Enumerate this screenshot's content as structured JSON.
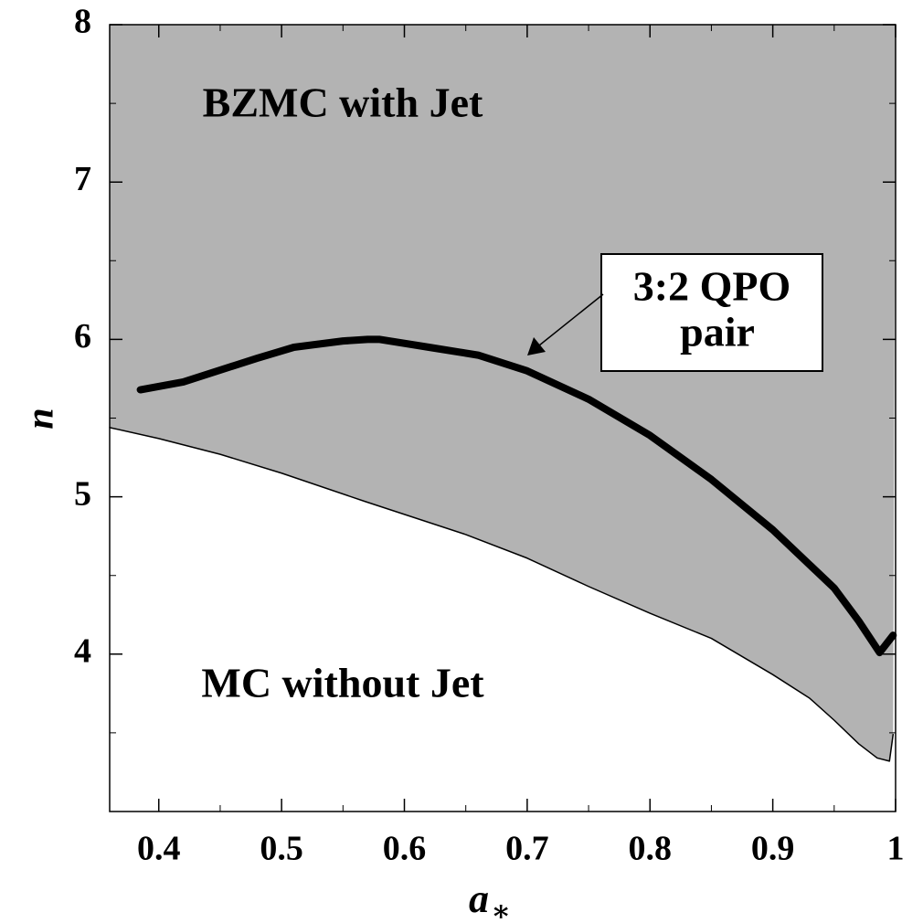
{
  "chart_data": {
    "type": "line",
    "x_label": "a",
    "x_label_subscript": "∗",
    "y_label": "n",
    "xlim": [
      0.36,
      1
    ],
    "ylim": [
      3,
      8
    ],
    "xticks": [
      {
        "value": 0.4,
        "label": "0.4"
      },
      {
        "value": 0.5,
        "label": "0.5"
      },
      {
        "value": 0.6,
        "label": "0.6"
      },
      {
        "value": 0.7,
        "label": "0.7"
      },
      {
        "value": 0.8,
        "label": "0.8"
      },
      {
        "value": 0.9,
        "label": "0.9"
      },
      1
    ],
    "yticks": [
      4,
      5,
      6,
      7,
      8
    ],
    "xminorticks": [
      0.45,
      0.55,
      0.65,
      0.75,
      0.85,
      0.95
    ],
    "yminorticks": [
      3.5,
      4.5,
      5.5,
      6.5,
      7.5
    ],
    "series": [
      {
        "name": null,
        "color": "#000000",
        "fill_above": "#b3b3b3",
        "width": 1.5,
        "x": [
          0.36,
          0.4,
          0.45,
          0.5,
          0.568,
          0.65,
          0.7,
          0.75,
          0.8,
          0.85,
          0.9,
          0.93,
          0.95,
          0.97,
          0.985,
          0.995,
          0.998
        ],
        "values": [
          5.44,
          5.37,
          5.27,
          5.15,
          4.97,
          4.76,
          4.61,
          4.43,
          4.26,
          4.1,
          3.87,
          3.72,
          3.58,
          3.43,
          3.34,
          3.32,
          3.49
        ]
      },
      {
        "name": null,
        "color": "#000000",
        "width": 8,
        "x": [
          0.385,
          0.42,
          0.48,
          0.51,
          0.55,
          0.57,
          0.58,
          0.62,
          0.66,
          0.7,
          0.75,
          0.8,
          0.85,
          0.9,
          0.95,
          0.97,
          0.987,
          0.998
        ],
        "values": [
          5.68,
          5.73,
          5.88,
          5.95,
          5.99,
          6.0,
          6.0,
          5.95,
          5.9,
          5.8,
          5.62,
          5.39,
          5.11,
          4.79,
          4.42,
          4.21,
          4.01,
          4.12
        ]
      }
    ],
    "annotations": [
      {
        "text": "BZMC with Jet"
      },
      {
        "text": "MC without Jet"
      },
      {
        "lines": [
          "3:2 QPO",
          "pair"
        ]
      }
    ]
  }
}
